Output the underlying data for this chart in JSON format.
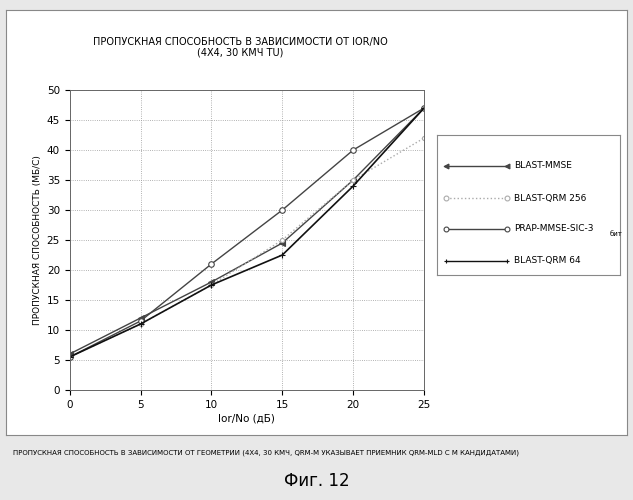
{
  "title_line1": "ПРОПУСКНАЯ СПОСОБНОСТЬ В ЗАВИСИМОСТИ ОТ IOR/NO",
  "title_line2": "(4X4, 30 КМЧ TU)",
  "xlabel": "Ior/No (дБ)",
  "ylabel": "ПРОПУСКНАЯ СПОСОБНОСТЬ (МБ/С)",
  "xlim": [
    0,
    25
  ],
  "ylim": [
    0,
    50
  ],
  "xticks": [
    0,
    5,
    10,
    15,
    20,
    25
  ],
  "yticks": [
    0,
    5,
    10,
    15,
    20,
    25,
    30,
    35,
    40,
    45,
    50
  ],
  "footer_text": "ПРОПУСКНАЯ СПОСОБНОСТЬ В ЗАВИСИМОСТИ ОТ ГЕОМЕТРИИ (4X4, 30 КМЧ, QRM-M УКАЗЫВАЕТ ПРИЕМНИК QRM-MLD С М КАНДИДАТАМИ)",
  "fig_label": "Фиг. 12",
  "series": [
    {
      "label": "BLAST-MMSE",
      "x": [
        0,
        5,
        10,
        15,
        20,
        25
      ],
      "y": [
        6.0,
        12.0,
        18.0,
        24.5,
        35.0,
        47.0
      ],
      "color": "#444444",
      "linestyle": "-",
      "marker": "<",
      "markersize": 4,
      "linewidth": 1.0
    },
    {
      "label": "BLAST-QRM 256",
      "x": [
        0,
        5,
        10,
        15,
        20,
        25
      ],
      "y": [
        5.5,
        11.0,
        17.5,
        25.0,
        35.0,
        42.0
      ],
      "color": "#aaaaaa",
      "linestyle": ":",
      "marker": "o",
      "markersize": 3,
      "linewidth": 1.0
    },
    {
      "label": "PRAP-MMSE-SIC-3",
      "label_suffix": "бит",
      "x": [
        0,
        5,
        10,
        15,
        20,
        25
      ],
      "y": [
        5.5,
        11.5,
        21.0,
        30.0,
        40.0,
        47.0
      ],
      "color": "#444444",
      "linestyle": "-",
      "marker": "o",
      "markersize": 4,
      "linewidth": 1.0
    },
    {
      "label": "BLAST-QRM 64",
      "x": [
        0,
        5,
        10,
        15,
        20,
        25
      ],
      "y": [
        5.5,
        11.0,
        17.5,
        22.5,
        34.0,
        47.0
      ],
      "color": "#111111",
      "linestyle": "-",
      "marker": "+",
      "markersize": 5,
      "linewidth": 1.2
    }
  ],
  "background_color": "#e8e8e8",
  "plot_bg_color": "#ffffff",
  "outer_frame_color": "#aaaaaa",
  "grid_color": "#999999",
  "grid_linestyle": ":",
  "grid_linewidth": 0.6
}
